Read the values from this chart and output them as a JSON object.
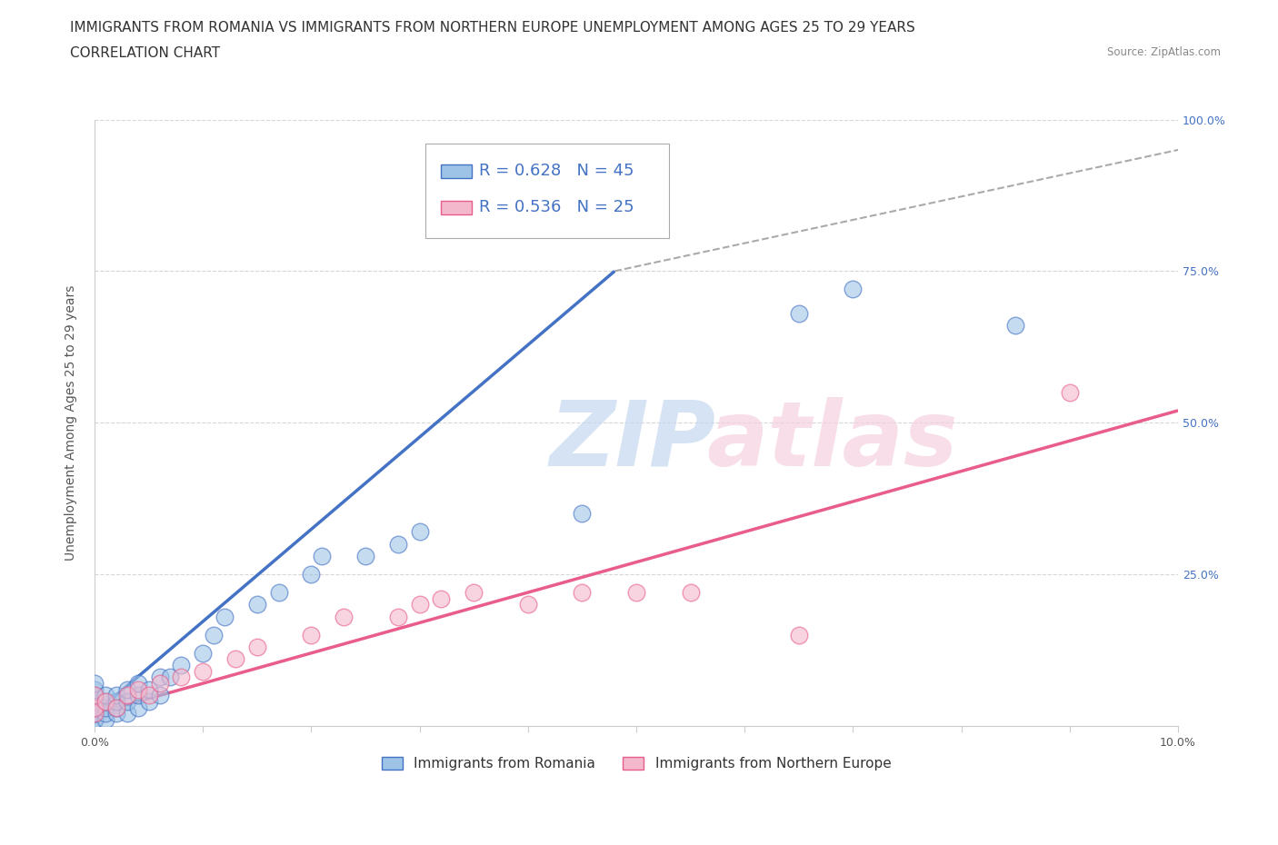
{
  "title_line1": "IMMIGRANTS FROM ROMANIA VS IMMIGRANTS FROM NORTHERN EUROPE UNEMPLOYMENT AMONG AGES 25 TO 29 YEARS",
  "title_line2": "CORRELATION CHART",
  "source": "Source: ZipAtlas.com",
  "xlabel": "",
  "ylabel": "Unemployment Among Ages 25 to 29 years",
  "xlim": [
    0,
    10.0
  ],
  "ylim": [
    0,
    100.0
  ],
  "xticks": [
    0,
    1,
    2,
    3,
    4,
    5,
    6,
    7,
    8,
    9,
    10
  ],
  "yticks": [
    0,
    25,
    50,
    75,
    100
  ],
  "xtick_labels": [
    "0.0%",
    "",
    "",
    "",
    "",
    "",
    "",
    "",
    "",
    "",
    "10.0%"
  ],
  "ytick_labels": [
    "",
    "25.0%",
    "50.0%",
    "75.0%",
    "100.0%"
  ],
  "romania_color": "#4472c4",
  "romania_color_fill": "#9dc3e6",
  "northern_color": "#e85d8a",
  "northern_color_fill": "#f4b8cc",
  "romania_R": 0.628,
  "romania_N": 45,
  "northern_R": 0.536,
  "northern_N": 25,
  "legend_label_romania": "Immigrants from Romania",
  "legend_label_northern": "Immigrants from Northern Europe",
  "romania_scatter_x": [
    0.0,
    0.0,
    0.0,
    0.0,
    0.0,
    0.0,
    0.0,
    0.0,
    0.0,
    0.0,
    0.1,
    0.1,
    0.1,
    0.1,
    0.1,
    0.2,
    0.2,
    0.2,
    0.2,
    0.3,
    0.3,
    0.3,
    0.4,
    0.4,
    0.4,
    0.5,
    0.5,
    0.6,
    0.6,
    0.7,
    0.8,
    1.0,
    1.1,
    1.2,
    1.5,
    1.7,
    2.0,
    2.1,
    2.5,
    2.8,
    3.0,
    4.5,
    6.5,
    7.0,
    8.5
  ],
  "romania_scatter_y": [
    1,
    1,
    2,
    2,
    3,
    3,
    4,
    5,
    6,
    7,
    1,
    2,
    3,
    4,
    5,
    2,
    3,
    4,
    5,
    2,
    4,
    6,
    3,
    5,
    7,
    4,
    6,
    5,
    8,
    8,
    10,
    12,
    15,
    18,
    20,
    22,
    25,
    28,
    28,
    30,
    32,
    35,
    68,
    72,
    66
  ],
  "northern_scatter_x": [
    0.0,
    0.0,
    0.0,
    0.1,
    0.2,
    0.3,
    0.4,
    0.5,
    0.6,
    0.8,
    1.0,
    1.3,
    1.5,
    2.0,
    2.3,
    2.8,
    3.0,
    3.2,
    3.5,
    4.0,
    4.5,
    5.0,
    5.5,
    6.5,
    9.0
  ],
  "northern_scatter_y": [
    2,
    3,
    5,
    4,
    3,
    5,
    6,
    5,
    7,
    8,
    9,
    11,
    13,
    15,
    18,
    18,
    20,
    21,
    22,
    20,
    22,
    22,
    22,
    15,
    55
  ],
  "romania_line_x": [
    0.0,
    4.8
  ],
  "romania_line_y": [
    2,
    75
  ],
  "northern_line_x": [
    0.0,
    10.0
  ],
  "northern_line_y": [
    2,
    52
  ],
  "dash_line_x": [
    4.8,
    10.0
  ],
  "dash_line_y": [
    75,
    95
  ],
  "background_color": "#ffffff",
  "grid_color": "#cccccc",
  "title_fontsize": 11,
  "axis_fontsize": 10,
  "tick_fontsize": 9,
  "legend_fontsize": 11,
  "right_tick_color": "#4472c4",
  "legend_text_color": "#4472c4"
}
